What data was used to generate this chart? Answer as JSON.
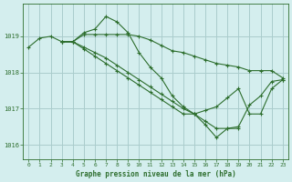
{
  "title": "Graphe pression niveau de la mer (hPa)",
  "bg_color": "#d4eeee",
  "grid_color": "#aacccc",
  "line_color": "#2d6e2d",
  "xlim": [
    -0.5,
    23.5
  ],
  "ylim": [
    1015.6,
    1019.9
  ],
  "yticks": [
    1016,
    1017,
    1018,
    1019
  ],
  "xticks": [
    0,
    1,
    2,
    3,
    4,
    5,
    6,
    7,
    8,
    9,
    10,
    11,
    12,
    13,
    14,
    15,
    16,
    17,
    18,
    19,
    20,
    21,
    22,
    23
  ],
  "lines": [
    {
      "x": [
        0,
        1,
        2,
        3,
        4,
        5,
        6,
        7,
        8,
        9,
        10,
        11,
        12,
        13,
        14,
        15,
        16,
        17,
        18,
        19,
        20,
        21,
        22,
        23
      ],
      "y": [
        1018.7,
        1018.95,
        1019.0,
        1018.85,
        1018.85,
        1019.05,
        1019.05,
        1019.05,
        1019.05,
        1019.05,
        1019.0,
        1018.9,
        1018.75,
        1018.6,
        1018.55,
        1018.45,
        1018.35,
        1018.25,
        1018.2,
        1018.15,
        1018.05,
        1018.05,
        1018.05,
        1017.85
      ]
    },
    {
      "x": [
        3,
        4,
        5,
        6,
        7,
        8,
        9,
        10,
        11,
        12,
        13,
        14,
        15,
        16,
        17,
        18,
        19,
        20,
        21,
        22,
        23
      ],
      "y": [
        1018.85,
        1018.85,
        1019.1,
        1019.2,
        1019.55,
        1019.4,
        1019.1,
        1018.55,
        1018.15,
        1017.85,
        1017.35,
        1017.05,
        1016.85,
        1016.95,
        1017.05,
        1017.3,
        1017.55,
        1016.85,
        1016.85,
        1017.55,
        1017.8
      ]
    },
    {
      "x": [
        3,
        4,
        5,
        6,
        7,
        8,
        9,
        10,
        11,
        12,
        13,
        14,
        15,
        16,
        17,
        18,
        19,
        20,
        21,
        22,
        23
      ],
      "y": [
        1018.85,
        1018.85,
        1018.65,
        1018.45,
        1018.25,
        1018.05,
        1017.85,
        1017.65,
        1017.45,
        1017.25,
        1017.05,
        1016.85,
        1016.85,
        1016.55,
        1016.2,
        1016.45,
        1016.5,
        1017.1,
        1017.35,
        1017.75,
        1017.8
      ]
    },
    {
      "x": [
        3,
        4,
        5,
        6,
        7,
        8,
        9,
        10,
        11,
        12,
        13,
        14,
        15,
        16,
        17,
        18,
        19
      ],
      "y": [
        1018.85,
        1018.85,
        1018.7,
        1018.55,
        1018.4,
        1018.2,
        1018.0,
        1017.8,
        1017.6,
        1017.4,
        1017.2,
        1017.0,
        1016.85,
        1016.65,
        1016.45,
        1016.45,
        1016.45
      ]
    }
  ]
}
